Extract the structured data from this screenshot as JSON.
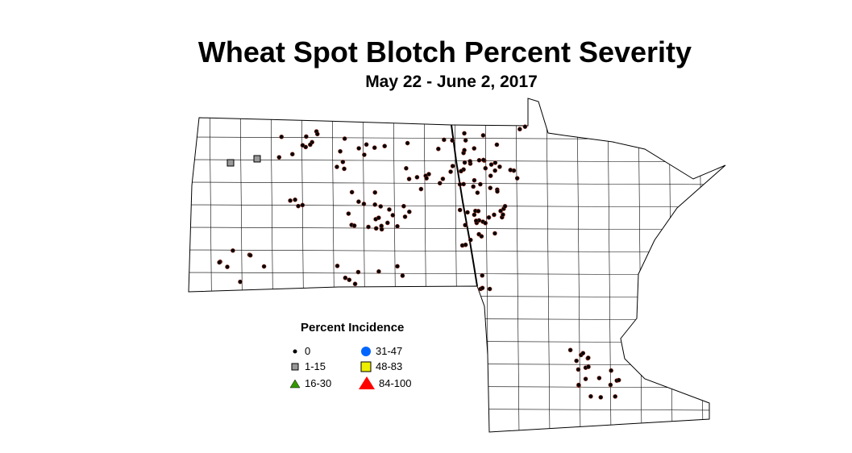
{
  "title": "Wheat Spot Blotch Percent Severity",
  "subtitle": "May 22 - June 2, 2017",
  "legend": {
    "title": "Percent Incidence",
    "items": [
      {
        "label": "0",
        "symbol": "small-dot",
        "color": "#000000"
      },
      {
        "label": "1-15",
        "symbol": "square",
        "color": "#999999"
      },
      {
        "label": "16-30",
        "symbol": "triangle",
        "color": "#339900"
      },
      {
        "label": "31-47",
        "symbol": "circle",
        "color": "#0066ff"
      },
      {
        "label": "48-83",
        "symbol": "square",
        "color": "#eeee00"
      },
      {
        "label": "84-100",
        "symbol": "triangle",
        "color": "#ff0000"
      }
    ]
  }
}
